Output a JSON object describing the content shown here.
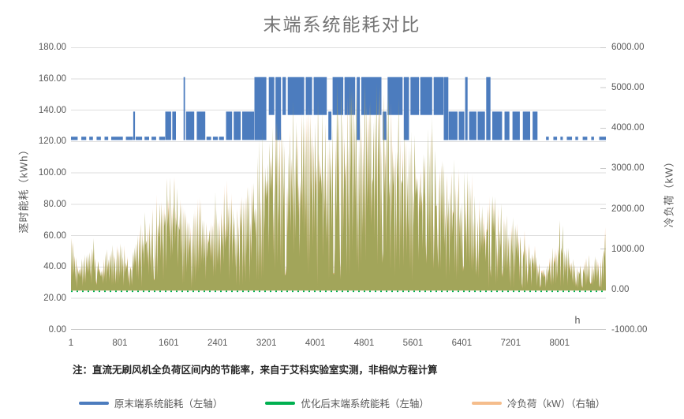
{
  "title": "末端系统能耗对比",
  "note": {
    "prefix": "注：",
    "text": "直流无刷风机全负荷区间内的节能率，来自于艾科实验室实测，非相似方程计算"
  },
  "chart_data": {
    "type": "area",
    "title": "末端系统能耗对比",
    "grid": true,
    "legend_position": "bottom",
    "x_axis": {
      "label": "h",
      "range": [
        1,
        8760
      ],
      "ticks": [
        "1",
        "801",
        "1601",
        "2401",
        "3201",
        "4001",
        "4801",
        "5601",
        "6401",
        "7201",
        "8001"
      ]
    },
    "left_axis": {
      "label": "逐时能耗（kWh）",
      "range": [
        0,
        180
      ],
      "step": 20,
      "ticks": [
        "180.00",
        "160.00",
        "140.00",
        "120.00",
        "100.00",
        "80.00",
        "60.00",
        "40.00",
        "20.00",
        "0.00"
      ]
    },
    "right_axis": {
      "label": "冷负荷（kW）",
      "range": [
        -1000,
        6000
      ],
      "step": 1000,
      "ticks": [
        "6000.00",
        "5000.00",
        "4000.00",
        "3000.00",
        "2000.00",
        "1000.00",
        "0.00",
        "-1000.00"
      ]
    },
    "series": [
      {
        "name": "原末端系统能耗（左轴）",
        "axis": "left",
        "color": "#4C7CBE",
        "style": "step-line",
        "levels_kwh": [
          122,
          138,
          160
        ],
        "dashes_122": [
          [
            1,
            110
          ],
          [
            170,
            250
          ],
          [
            300,
            360
          ],
          [
            420,
            490
          ],
          [
            550,
            610
          ],
          [
            660,
            850
          ],
          [
            900,
            1015
          ],
          [
            1060,
            1165
          ],
          [
            1205,
            1280
          ],
          [
            1320,
            1395
          ],
          [
            1445,
            1540
          ],
          [
            2220,
            2295
          ],
          [
            2325,
            2405
          ],
          [
            2425,
            2505
          ],
          [
            7780,
            7825
          ],
          [
            7900,
            7960
          ],
          [
            8015,
            8055
          ],
          [
            8120,
            8205
          ],
          [
            8260,
            8305
          ],
          [
            8380,
            8455
          ],
          [
            8520,
            8565
          ],
          [
            8650,
            8760
          ]
        ],
        "bands": [
          [
            1020,
            1048,
            122,
            138
          ],
          [
            1545,
            1640,
            122,
            138
          ],
          [
            1660,
            1720,
            122,
            138
          ],
          [
            1845,
            1868,
            122,
            160
          ],
          [
            1885,
            2020,
            122,
            138
          ],
          [
            2060,
            2200,
            122,
            138
          ],
          [
            2540,
            2640,
            122,
            138
          ],
          [
            2665,
            2780,
            122,
            138
          ],
          [
            2805,
            3000,
            122,
            138
          ],
          [
            3005,
            3200,
            122,
            160
          ],
          [
            3240,
            3330,
            138,
            160
          ],
          [
            3350,
            3440,
            122,
            160
          ],
          [
            3465,
            3520,
            138,
            160
          ],
          [
            3550,
            3820,
            138,
            160
          ],
          [
            3845,
            3950,
            138,
            160
          ],
          [
            3975,
            4190,
            138,
            160
          ],
          [
            4215,
            4265,
            122,
            138
          ],
          [
            4285,
            4460,
            138,
            160
          ],
          [
            4480,
            4655,
            138,
            160
          ],
          [
            4680,
            4730,
            122,
            160
          ],
          [
            4755,
            5085,
            138,
            160
          ],
          [
            5105,
            5165,
            122,
            138
          ],
          [
            5185,
            5430,
            138,
            160
          ],
          [
            5450,
            5535,
            122,
            160
          ],
          [
            5560,
            5700,
            138,
            160
          ],
          [
            5720,
            5915,
            138,
            160
          ],
          [
            5940,
            6100,
            138,
            160
          ],
          [
            6105,
            6180,
            122,
            160
          ],
          [
            6185,
            6330,
            122,
            138
          ],
          [
            6350,
            6440,
            122,
            138
          ],
          [
            6455,
            6495,
            122,
            160
          ],
          [
            6520,
            6640,
            122,
            138
          ],
          [
            6660,
            6780,
            122,
            138
          ],
          [
            6800,
            6870,
            122,
            160
          ],
          [
            6900,
            7060,
            122,
            138
          ],
          [
            7100,
            7180,
            122,
            138
          ],
          [
            7230,
            7350,
            122,
            138
          ],
          [
            7400,
            7520,
            122,
            138
          ],
          [
            7560,
            7640,
            122,
            138
          ]
        ]
      },
      {
        "name": "优化后末端系统能耗（左轴）",
        "axis": "left",
        "color": "#00B050",
        "rendered_color": "#A2A55A",
        "style": "line",
        "baseline_kwh": 25,
        "peak_kwh": 160,
        "load_coupling_kwh_per_kw": 0.026
      },
      {
        "name": "冷负荷（kW）（右轴）",
        "axis": "right",
        "color": "#F5BD8C",
        "style": "area",
        "baseline_kw": 0,
        "peak_kw": 5250,
        "envelope_kw": [
          [
            1,
            1500
          ],
          [
            150,
            800
          ],
          [
            300,
            1500
          ],
          [
            500,
            700
          ],
          [
            700,
            1300
          ],
          [
            801,
            1700
          ],
          [
            950,
            800
          ],
          [
            1100,
            1500
          ],
          [
            1300,
            2300
          ],
          [
            1500,
            2800
          ],
          [
            1601,
            3300
          ],
          [
            1750,
            2600
          ],
          [
            1900,
            1900
          ],
          [
            2100,
            2500
          ],
          [
            2300,
            2100
          ],
          [
            2401,
            2400
          ],
          [
            2550,
            2900
          ],
          [
            2700,
            2300
          ],
          [
            2850,
            2600
          ],
          [
            3000,
            3000
          ],
          [
            3100,
            3600
          ],
          [
            3201,
            4200
          ],
          [
            3350,
            4500
          ],
          [
            3500,
            4200
          ],
          [
            3650,
            4700
          ],
          [
            3800,
            4400
          ],
          [
            3950,
            4800
          ],
          [
            4100,
            5100
          ],
          [
            4250,
            4700
          ],
          [
            4400,
            5200
          ],
          [
            4550,
            4900
          ],
          [
            4700,
            5250
          ],
          [
            4801,
            5250
          ],
          [
            4950,
            4800
          ],
          [
            5100,
            5100
          ],
          [
            5250,
            4700
          ],
          [
            5400,
            4900
          ],
          [
            5601,
            4400
          ],
          [
            5750,
            4000
          ],
          [
            5900,
            4200
          ],
          [
            6050,
            3500
          ],
          [
            6200,
            3300
          ],
          [
            6401,
            3500
          ],
          [
            6550,
            2900
          ],
          [
            6700,
            2500
          ],
          [
            6850,
            2700
          ],
          [
            7000,
            2300
          ],
          [
            7201,
            2100
          ],
          [
            7350,
            1700
          ],
          [
            7500,
            1300
          ],
          [
            7650,
            1000
          ],
          [
            7800,
            600
          ],
          [
            8001,
            1800
          ],
          [
            8150,
            1000
          ],
          [
            8300,
            600
          ],
          [
            8450,
            1100
          ],
          [
            8600,
            800
          ],
          [
            8760,
            1600
          ]
        ]
      }
    ],
    "colors": {
      "grid": "#DEDEDE",
      "axis_line": "#C9C9C9",
      "text": "#595959",
      "title": "#757575"
    }
  }
}
